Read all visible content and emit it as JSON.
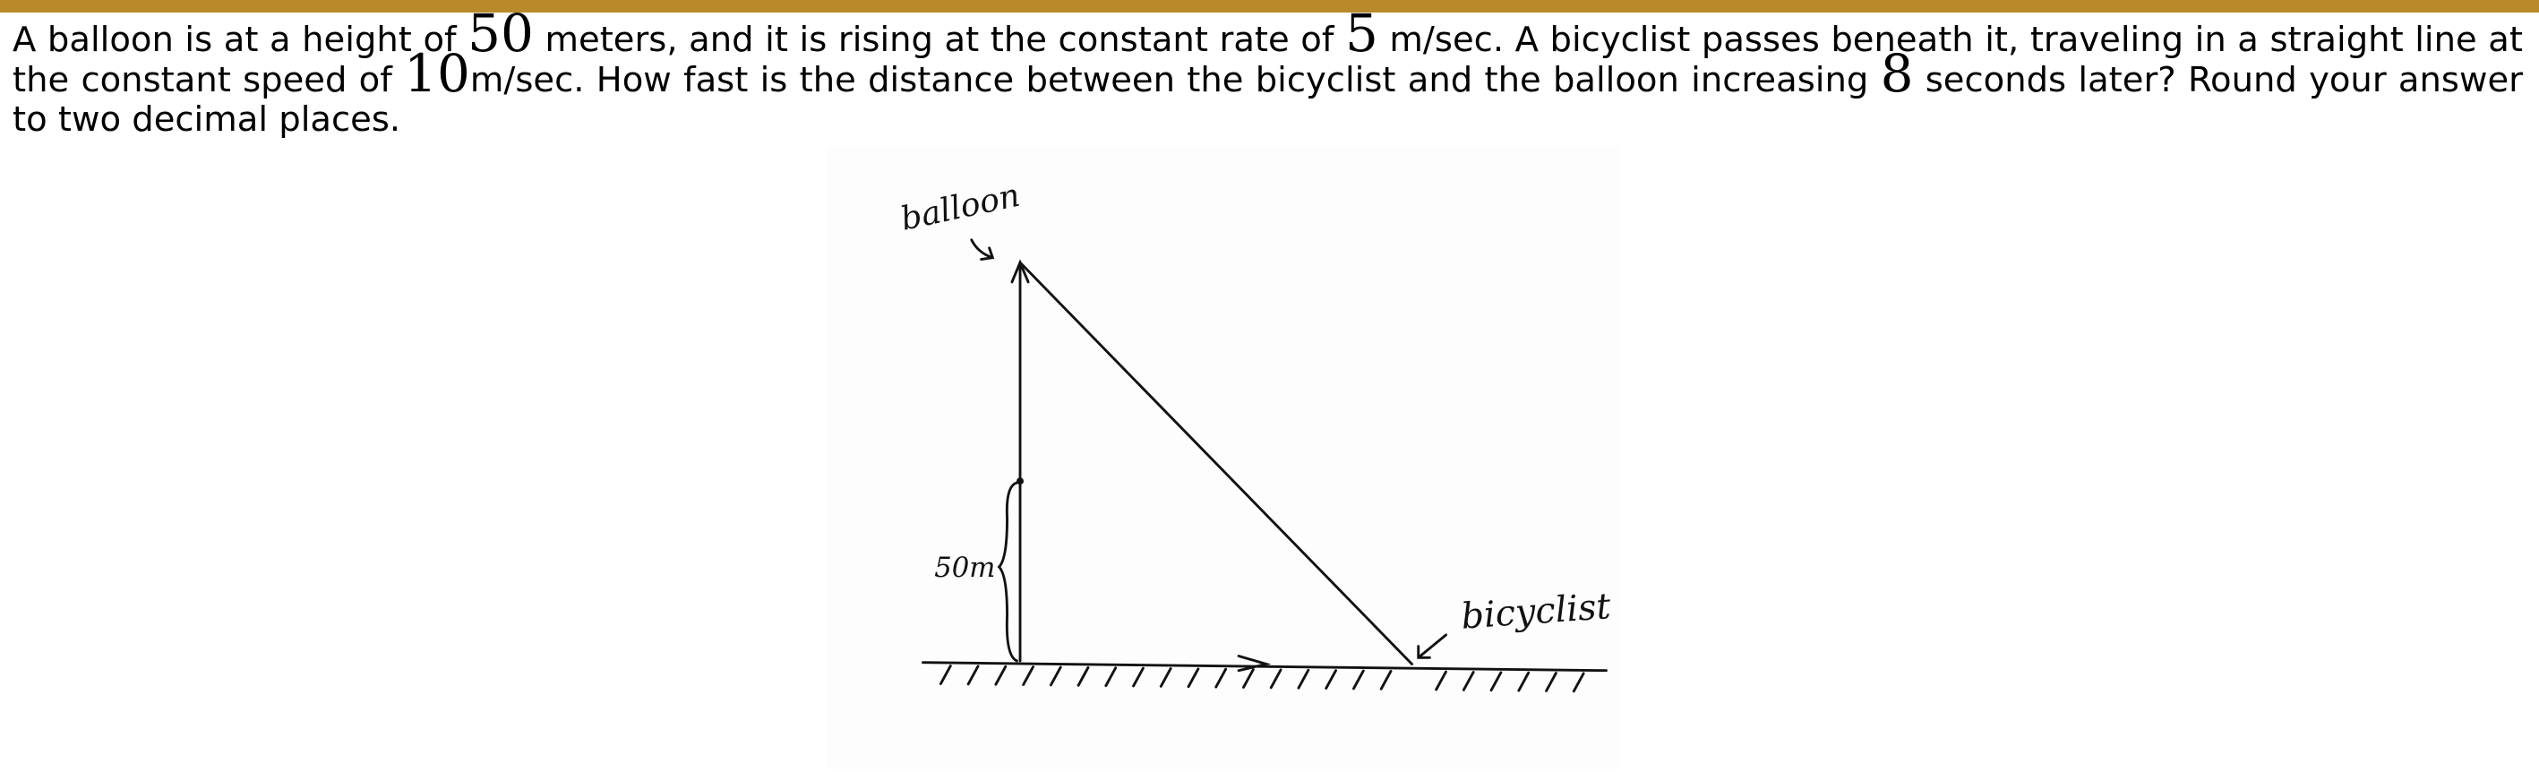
{
  "problem": {
    "parts": [
      "A balloon is at a height of ",
      50,
      " meters, and it is rising at the constant rate of ",
      5,
      " m/sec. A bicyclist passes beneath it, traveling in a straight line at the constant speed of ",
      10,
      "m/sec. How fast is the distance between the bicyclist and the balloon increasing ",
      8,
      " seconds later? Round your answer to two decimal places."
    ]
  },
  "figure": {
    "labels": {
      "balloon": "balloon",
      "height": "50m",
      "bicyclist": "bicyclist"
    }
  }
}
